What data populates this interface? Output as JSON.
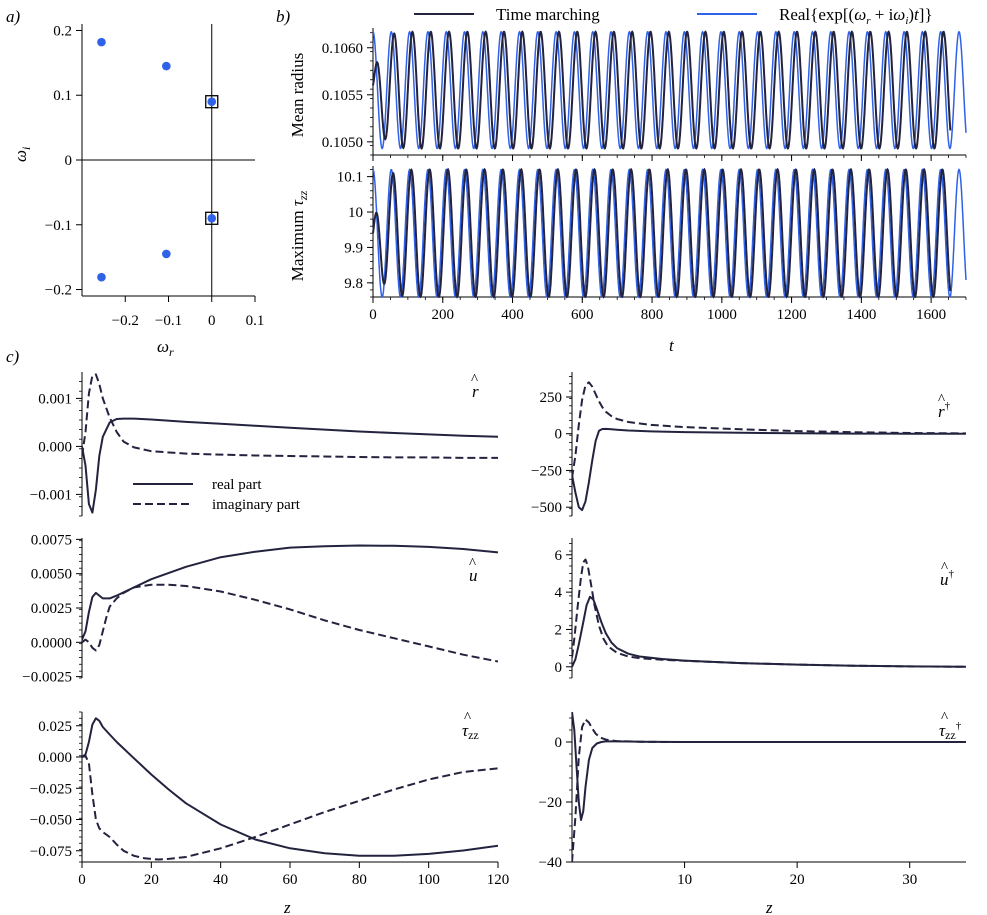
{
  "colors": {
    "dark": "#23233f",
    "blue": "#2f62e8"
  },
  "panel_labels": {
    "a": "a)",
    "b": "b)",
    "c": "c)"
  },
  "legend": {
    "time_marching": "Time marching",
    "real_exp": "Real{exp[(ωr + iωi)t]}"
  },
  "legend_c": {
    "real": "real part",
    "imag": "imaginary part"
  },
  "labels": {
    "omega_r": "ωr",
    "omega_i": "ωi",
    "mean_radius": "Mean radius",
    "max_tau": "Maximum τzz",
    "t": "t",
    "z": "z",
    "r_hat": "r",
    "r_adj": "r†",
    "u_hat": "u",
    "u_adj": "u†",
    "tau_hat": "τzz",
    "tau_adj": "τzz†"
  },
  "chart_data": [
    {
      "id": "a",
      "type": "scatter",
      "xlabel": "ωr",
      "ylabel": "ωi",
      "xlim": [
        -0.3,
        0.1
      ],
      "ylim": [
        -0.21,
        0.21
      ],
      "xticks": [
        "−0.2",
        "−0.1",
        "0",
        "0.1"
      ],
      "xtick_values": [
        -0.2,
        -0.1,
        0,
        0.1
      ],
      "yticks": [
        "−0.2",
        "−0.1",
        "0",
        "0.1",
        "0.2"
      ],
      "ytick_values": [
        -0.2,
        -0.1,
        0,
        0.1,
        0.2
      ],
      "points": [
        {
          "x": -0.255,
          "y": 0.182
        },
        {
          "x": -0.105,
          "y": 0.145
        },
        {
          "x": 0.0,
          "y": 0.09
        },
        {
          "x": 0.0,
          "y": -0.09
        },
        {
          "x": -0.105,
          "y": -0.145
        },
        {
          "x": -0.255,
          "y": -0.181
        }
      ],
      "highlighted": [
        {
          "x": 0.0,
          "y": 0.09
        },
        {
          "x": 0.0,
          "y": -0.09
        }
      ]
    },
    {
      "id": "b_top",
      "type": "line",
      "ylabel": "Mean radius",
      "xlim": [
        0,
        1700
      ],
      "ylim": [
        0.10486,
        0.10621
      ],
      "yticks": [
        "0.1050",
        "0.1055",
        "0.1060"
      ],
      "ytick_values": [
        0.105,
        0.1055,
        0.106
      ],
      "xtick_values": [
        0,
        200,
        400,
        600,
        800,
        1000,
        1200,
        1400,
        1600
      ],
      "period": 52.5,
      "center": 0.10555,
      "amplitude": 0.00062,
      "series": [
        {
          "name": "Time marching"
        },
        {
          "name": "Real{exp[(ωr + iωi)t]}"
        }
      ]
    },
    {
      "id": "b_bottom",
      "type": "line",
      "ylabel": "Maximum τzz",
      "xlabel": "t",
      "xlim": [
        0,
        1700
      ],
      "ylim": [
        9.76,
        10.13
      ],
      "yticks": [
        "9.8",
        "9.9",
        "10",
        "10.1"
      ],
      "ytick_values": [
        9.8,
        9.9,
        10.0,
        10.1
      ],
      "xticks": [
        "0",
        "200",
        "400",
        "600",
        "800",
        "1000",
        "1200",
        "1400",
        "1600"
      ],
      "xtick_values": [
        0,
        200,
        400,
        600,
        800,
        1000,
        1200,
        1400,
        1600
      ],
      "period": 52.5,
      "center": 9.94,
      "amplitude": 0.18,
      "series": [
        {
          "name": "Time marching"
        },
        {
          "name": "Real{exp[(ωr + iωi)t]}"
        }
      ]
    },
    {
      "id": "c_r",
      "type": "line",
      "xlim": [
        0,
        120
      ],
      "ylim": [
        -0.00145,
        0.00155
      ],
      "yticks": [
        "−0.001",
        "0.000",
        "0.001"
      ],
      "ytick_values": [
        -0.001,
        0.0,
        0.001
      ],
      "xtick_values": [
        0,
        20,
        40,
        60,
        80,
        100,
        120
      ],
      "series": [
        {
          "name": "real part",
          "x": [
            0,
            1,
            2,
            3,
            4,
            5,
            6,
            8,
            10,
            12,
            15,
            20,
            30,
            40,
            50,
            60,
            70,
            80,
            90,
            100,
            110,
            120
          ],
          "y": [
            0,
            -0.0004,
            -0.0012,
            -0.00138,
            -0.0009,
            -0.0002,
            0.0002,
            0.0005,
            0.00057,
            0.00058,
            0.00058,
            0.00056,
            0.00051,
            0.00047,
            0.00043,
            0.00039,
            0.00035,
            0.00031,
            0.00028,
            0.00025,
            0.00022,
            0.0002
          ]
        },
        {
          "name": "imaginary part",
          "x": [
            0,
            1,
            2,
            3,
            4,
            5,
            6,
            8,
            10,
            12,
            15,
            20,
            30,
            40,
            50,
            60,
            70,
            80,
            90,
            100,
            110,
            120
          ],
          "y": [
            -0.0002,
            0.0003,
            0.0011,
            0.00148,
            0.0015,
            0.0013,
            0.001,
            0.0006,
            0.0003,
            0.0001,
            -2e-05,
            -0.0001,
            -0.00015,
            -0.00017,
            -0.00019,
            -0.0002,
            -0.00021,
            -0.00022,
            -0.00023,
            -0.00023,
            -0.00024,
            -0.00024
          ]
        }
      ]
    },
    {
      "id": "c_r_adj",
      "type": "line",
      "xlim": [
        0,
        35
      ],
      "ylim": [
        -560,
        420
      ],
      "yticks": [
        "−500",
        "−250",
        "0",
        "250"
      ],
      "ytick_values": [
        -500,
        -250,
        0,
        250
      ],
      "xtick_values": [
        10,
        20,
        30
      ],
      "series": [
        {
          "name": "real part",
          "x": [
            0,
            0.3,
            0.6,
            0.9,
            1.2,
            1.5,
            1.8,
            2.1,
            2.4,
            2.7,
            3,
            3.5,
            4,
            5,
            7,
            10,
            15,
            20,
            25,
            30,
            35
          ],
          "y": [
            -280,
            -400,
            -500,
            -520,
            -460,
            -330,
            -180,
            -50,
            20,
            32,
            33,
            30,
            27,
            22,
            16,
            11,
            6,
            3,
            1,
            0,
            0
          ]
        },
        {
          "name": "imaginary part",
          "x": [
            0,
            0.3,
            0.6,
            0.9,
            1.2,
            1.5,
            1.8,
            2.1,
            2.4,
            2.7,
            3,
            3.5,
            4,
            5,
            7,
            10,
            15,
            20,
            25,
            30,
            35
          ],
          "y": [
            -300,
            -150,
            60,
            230,
            330,
            350,
            320,
            270,
            220,
            180,
            150,
            120,
            100,
            80,
            60,
            45,
            30,
            18,
            10,
            5,
            2
          ]
        }
      ]
    },
    {
      "id": "c_u",
      "type": "line",
      "xlim": [
        0,
        120
      ],
      "ylim": [
        -0.0026,
        0.0076
      ],
      "yticks": [
        "−0.0025",
        "0.0000",
        "0.0025",
        "0.0050",
        "0.0075"
      ],
      "ytick_values": [
        -0.0025,
        0.0,
        0.0025,
        0.005,
        0.0075
      ],
      "xtick_values": [
        0,
        20,
        40,
        60,
        80,
        100,
        120
      ],
      "series": [
        {
          "name": "real part",
          "x": [
            0,
            1,
            2,
            3,
            4,
            5,
            6,
            8,
            10,
            15,
            20,
            30,
            40,
            50,
            60,
            70,
            80,
            90,
            100,
            110,
            120
          ],
          "y": [
            0.0002,
            0.0008,
            0.0022,
            0.0033,
            0.0036,
            0.0034,
            0.0032,
            0.0032,
            0.0034,
            0.004,
            0.0046,
            0.0055,
            0.0062,
            0.0066,
            0.0069,
            0.007,
            0.00705,
            0.00703,
            0.00695,
            0.0068,
            0.00655
          ]
        },
        {
          "name": "imaginary part",
          "x": [
            0,
            1,
            2,
            3,
            4,
            5,
            6,
            7,
            8,
            10,
            12,
            15,
            20,
            25,
            30,
            40,
            50,
            60,
            70,
            80,
            90,
            100,
            110,
            120
          ],
          "y": [
            0,
            0.0002,
            0.0,
            -0.0004,
            -0.0006,
            -0.0002,
            0.0008,
            0.0018,
            0.0026,
            0.0032,
            0.0036,
            0.004,
            0.0042,
            0.0042,
            0.0041,
            0.0037,
            0.0031,
            0.0024,
            0.0016,
            0.0009,
            0.0003,
            -0.0003,
            -0.0009,
            -0.0014
          ]
        }
      ]
    },
    {
      "id": "c_u_adj",
      "type": "line",
      "xlim": [
        0,
        35
      ],
      "ylim": [
        -0.6,
        6.9
      ],
      "yticks": [
        "0",
        "2",
        "4",
        "6"
      ],
      "ytick_values": [
        0,
        2,
        4,
        6
      ],
      "xtick_values": [
        10,
        20,
        30
      ],
      "series": [
        {
          "name": "real part",
          "x": [
            0,
            0.3,
            0.6,
            1,
            1.3,
            1.6,
            1.9,
            2.2,
            2.6,
            3,
            3.5,
            4,
            5,
            6,
            8,
            10,
            15,
            20,
            25,
            30,
            35
          ],
          "y": [
            0,
            0.4,
            1.2,
            2.4,
            3.3,
            3.75,
            3.6,
            3.1,
            2.4,
            1.8,
            1.3,
            1.0,
            0.7,
            0.55,
            0.42,
            0.33,
            0.2,
            0.12,
            0.06,
            0.02,
            0
          ]
        },
        {
          "name": "imaginary part",
          "x": [
            0,
            0.2,
            0.5,
            0.8,
            1,
            1.2,
            1.4,
            1.7,
            2,
            2.4,
            2.8,
            3.2,
            4,
            5,
            6,
            8,
            10,
            15,
            20,
            25,
            30,
            35
          ],
          "y": [
            0.5,
            1.5,
            3.2,
            4.8,
            5.6,
            5.75,
            5.4,
            4.4,
            3.3,
            2.2,
            1.5,
            1.1,
            0.75,
            0.55,
            0.46,
            0.38,
            0.32,
            0.2,
            0.12,
            0.06,
            0.02,
            0
          ]
        }
      ]
    },
    {
      "id": "c_tau",
      "type": "line",
      "xlim": [
        0,
        120
      ],
      "ylim": [
        -0.084,
        0.036
      ],
      "yticks": [
        "−0.075",
        "−0.050",
        "−0.025",
        "0.000",
        "0.025"
      ],
      "ytick_values": [
        -0.075,
        -0.05,
        -0.025,
        0.0,
        0.025
      ],
      "xticks": [
        "0",
        "20",
        "40",
        "60",
        "80",
        "100",
        "120"
      ],
      "xtick_values": [
        0,
        20,
        40,
        60,
        80,
        100,
        120
      ],
      "xlabel": "z",
      "series": [
        {
          "name": "real part",
          "x": [
            0,
            1,
            2,
            3,
            4,
            5,
            6,
            8,
            10,
            15,
            20,
            25,
            30,
            40,
            50,
            60,
            70,
            80,
            90,
            100,
            110,
            120
          ],
          "y": [
            0,
            0.002,
            0.012,
            0.026,
            0.031,
            0.029,
            0.024,
            0.018,
            0.012,
            -0.001,
            -0.014,
            -0.026,
            -0.037,
            -0.054,
            -0.066,
            -0.073,
            -0.077,
            -0.079,
            -0.079,
            -0.0775,
            -0.0748,
            -0.071
          ]
        },
        {
          "name": "imaginary part",
          "x": [
            0,
            1,
            2,
            3,
            4,
            5,
            6,
            8,
            10,
            12,
            15,
            18,
            20,
            22,
            25,
            30,
            40,
            50,
            60,
            70,
            80,
            90,
            100,
            110,
            120
          ],
          "y": [
            0,
            0.001,
            -0.005,
            -0.03,
            -0.05,
            -0.057,
            -0.06,
            -0.064,
            -0.07,
            -0.075,
            -0.079,
            -0.081,
            -0.0815,
            -0.082,
            -0.0815,
            -0.08,
            -0.073,
            -0.064,
            -0.054,
            -0.044,
            -0.035,
            -0.026,
            -0.018,
            -0.012,
            -0.009
          ]
        }
      ]
    },
    {
      "id": "c_tau_adj",
      "type": "line",
      "xlim": [
        0,
        35
      ],
      "ylim": [
        -40,
        10
      ],
      "yticks": [
        "−40",
        "−20",
        "0"
      ],
      "ytick_values": [
        -40,
        -20,
        0
      ],
      "xticks": [
        "10",
        "20",
        "30"
      ],
      "xtick_values": [
        10,
        20,
        30
      ],
      "xlabel": "z",
      "series": [
        {
          "name": "real part",
          "x": [
            0,
            0.2,
            0.4,
            0.6,
            0.8,
            1,
            1.2,
            1.5,
            1.8,
            2.2,
            2.6,
            3,
            4,
            6,
            10,
            15,
            20,
            25,
            30,
            35
          ],
          "y": [
            10,
            4,
            -8,
            -20,
            -26,
            -23,
            -15,
            -6,
            -2,
            -0.5,
            0,
            0.2,
            0.2,
            0.1,
            0,
            0,
            0,
            0,
            0,
            0
          ]
        },
        {
          "name": "imaginary part",
          "x": [
            0,
            0.3,
            0.6,
            0.9,
            1.2,
            1.5,
            1.8,
            2.1,
            2.5,
            3,
            3.5,
            4,
            5,
            6,
            8,
            10,
            15,
            20,
            25,
            30,
            35
          ],
          "y": [
            -40,
            -25,
            -5,
            5,
            7.5,
            6.5,
            4.5,
            2.8,
            1.5,
            0.8,
            0.5,
            0.3,
            0.2,
            0.1,
            0,
            0,
            0,
            0,
            0,
            0,
            0
          ]
        }
      ]
    }
  ]
}
